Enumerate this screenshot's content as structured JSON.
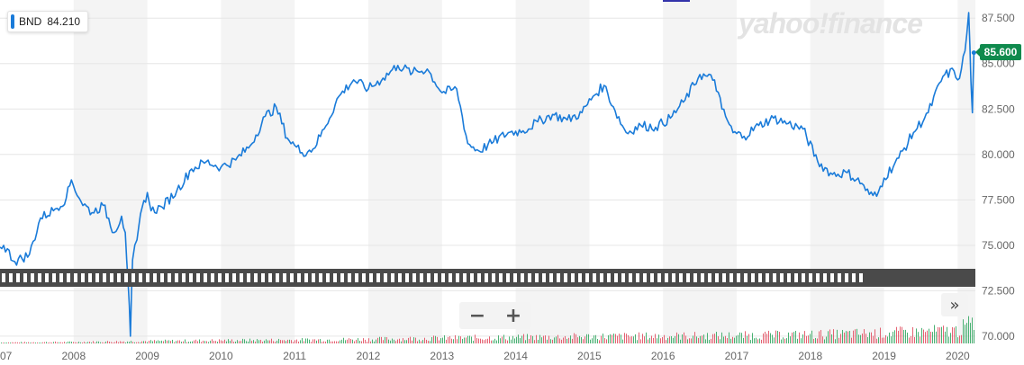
{
  "legend": {
    "symbol": "BND",
    "value": "84.210",
    "color": "#1a7bd9"
  },
  "watermark": "yahoo!finance",
  "last_price": {
    "label": "85.600",
    "color": "#0f8a4d"
  },
  "controls": {
    "zoom_out_label": "−",
    "zoom_in_label": "+",
    "expand_label": "»"
  },
  "colors": {
    "line": "#1a7bd9",
    "volume_up": "#2ba55c",
    "volume_down": "#e0485a",
    "grid": "#e6e6e6",
    "band": "#f4f4f4",
    "axis_text": "#666666"
  },
  "chart_data": {
    "type": "line",
    "series": [
      {
        "name": "BND",
        "x": [
          2007.0,
          2007.05,
          2007.2,
          2007.4,
          2007.55,
          2007.75,
          2007.9,
          2007.97,
          2008.1,
          2008.25,
          2008.4,
          2008.55,
          2008.65,
          2008.7,
          2008.74,
          2008.77,
          2008.8,
          2008.86,
          2008.93,
          2009.0,
          2009.05,
          2009.2,
          2009.4,
          2009.6,
          2009.8,
          2010.0,
          2010.2,
          2010.4,
          2010.6,
          2010.75,
          2010.9,
          2011.0,
          2011.1,
          2011.25,
          2011.4,
          2011.6,
          2011.8,
          2012.0,
          2012.2,
          2012.4,
          2012.6,
          2012.8,
          2013.0,
          2013.2,
          2013.35,
          2013.5,
          2013.7,
          2013.9,
          2014.1,
          2014.3,
          2014.5,
          2014.7,
          2014.9,
          2015.05,
          2015.2,
          2015.35,
          2015.5,
          2015.7,
          2015.9,
          2016.1,
          2016.3,
          2016.5,
          2016.7,
          2016.8,
          2016.95,
          2017.1,
          2017.3,
          2017.5,
          2017.7,
          2017.9,
          2018.1,
          2018.3,
          2018.5,
          2018.7,
          2018.8,
          2018.9,
          2019.0,
          2019.2,
          2019.4,
          2019.6,
          2019.8,
          2019.95,
          2020.0,
          2020.05,
          2020.1,
          2020.15,
          2020.18,
          2020.2,
          2020.22
        ],
        "y": [
          74.9,
          75.0,
          74.1,
          74.5,
          76.5,
          77.0,
          77.6,
          78.6,
          77.4,
          76.8,
          77.2,
          75.7,
          76.6,
          75.7,
          72.9,
          70.0,
          74.2,
          75.3,
          77.1,
          77.9,
          76.9,
          77.1,
          78.0,
          79.2,
          79.6,
          79.3,
          79.7,
          80.5,
          82.1,
          82.6,
          80.9,
          80.5,
          80.1,
          80.3,
          81.4,
          83.2,
          84.1,
          83.6,
          84.2,
          84.9,
          84.5,
          84.7,
          83.4,
          83.6,
          80.6,
          80.2,
          80.7,
          81.2,
          81.3,
          81.8,
          82.2,
          81.9,
          82.3,
          83.2,
          83.8,
          82.4,
          81.2,
          81.6,
          81.5,
          82.0,
          83.0,
          84.4,
          84.1,
          82.5,
          81.2,
          81.0,
          81.6,
          82.0,
          81.7,
          81.4,
          79.6,
          78.9,
          79.0,
          78.4,
          77.8,
          77.7,
          78.7,
          79.8,
          81.2,
          82.3,
          84.3,
          84.6,
          84.1,
          84.7,
          85.7,
          87.8,
          84.0,
          82.3,
          85.6
        ]
      }
    ],
    "volume": {
      "x": [
        2007.0,
        2008.0,
        2009.0,
        2010.0,
        2011.0,
        2012.0,
        2013.0,
        2014.0,
        2015.0,
        2016.0,
        2017.0,
        2018.0,
        2019.0,
        2020.0,
        2020.2
      ],
      "values": [
        0.4,
        0.6,
        1.0,
        1.3,
        1.5,
        1.8,
        2.3,
        2.6,
        3.0,
        3.2,
        3.4,
        3.8,
        4.5,
        5.6,
        9.0
      ]
    },
    "x_ticks": [
      "07",
      "2008",
      "2009",
      "2010",
      "2011",
      "2012",
      "2013",
      "2014",
      "2015",
      "2016",
      "2017",
      "2018",
      "2019",
      "2020"
    ],
    "x_tick_positions": [
      2007.0,
      2008.0,
      2009.0,
      2010.0,
      2011.0,
      2012.0,
      2013.0,
      2014.0,
      2015.0,
      2016.0,
      2017.0,
      2018.0,
      2019.0,
      2020.0
    ],
    "xlim": [
      2007.0,
      2020.24
    ],
    "y_ticks": [
      "70.000",
      "72.500",
      "75.000",
      "77.500",
      "80.000",
      "82.500",
      "85.000",
      "87.500"
    ],
    "y_tick_values": [
      70.0,
      72.5,
      75.0,
      77.5,
      80.0,
      82.5,
      85.0,
      87.5
    ],
    "ylim": [
      69.6,
      88.5
    ],
    "grid": true,
    "legend_position": "top-left"
  }
}
